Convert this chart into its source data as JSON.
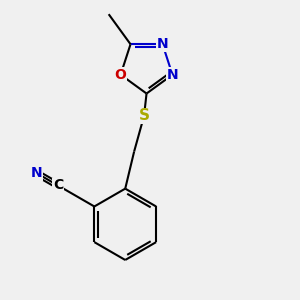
{
  "bg_color": "#f0f0f0",
  "atom_colors": {
    "C": "#000000",
    "N": "#0000cc",
    "O": "#cc0000",
    "S": "#aaaa00",
    "implicit": "#000000"
  },
  "bond_lw": 1.5,
  "label_fs": 10,
  "figsize": [
    3.0,
    3.0
  ],
  "dpi": 100,
  "xlim": [
    -2.5,
    3.5
  ],
  "ylim": [
    -3.5,
    2.5
  ]
}
